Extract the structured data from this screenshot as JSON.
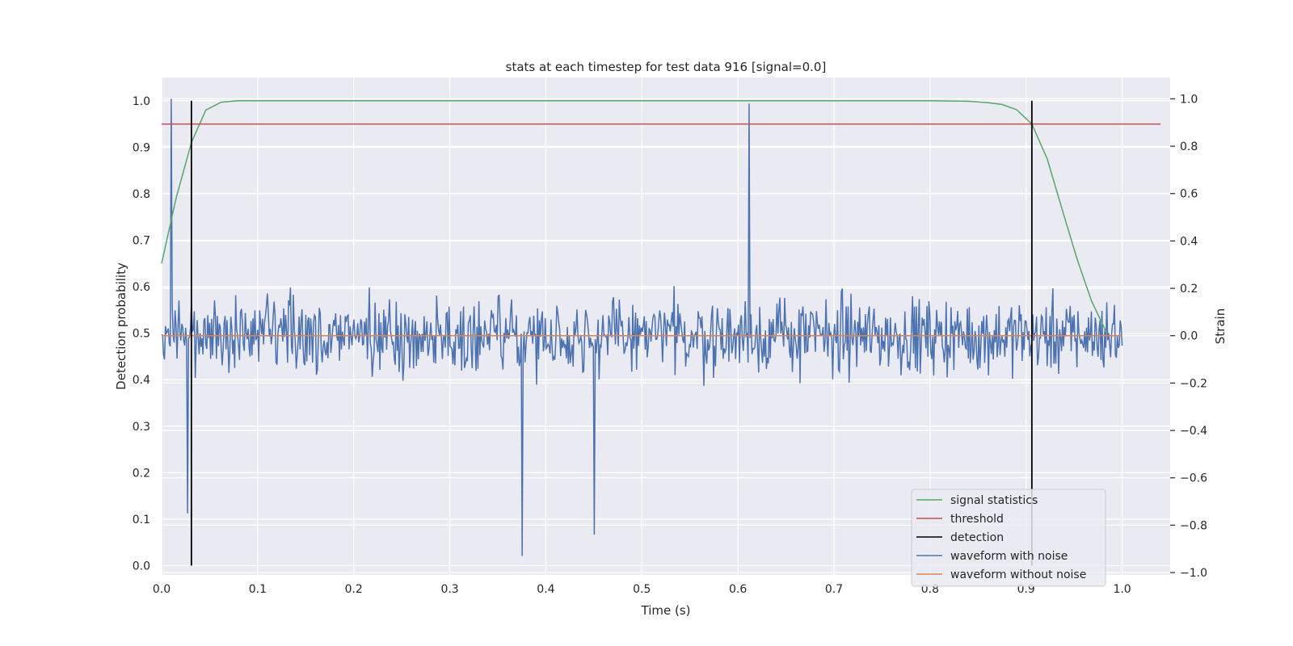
{
  "chart_data": {
    "type": "line",
    "title": "stats at each timestep for test data 916 [signal=0.0]",
    "xlabel": "Time (s)",
    "ylabel_left": "Detection probability",
    "ylabel_right": "Strain",
    "xlim": [
      0.0,
      1.05
    ],
    "ylim_left": [
      -0.02,
      1.05
    ],
    "ylim_right": [
      -1.01,
      1.09
    ],
    "x_ticks": [
      "0.0",
      "0.1",
      "0.2",
      "0.3",
      "0.4",
      "0.5",
      "0.6",
      "0.7",
      "0.8",
      "0.9",
      "1.0"
    ],
    "y_left_ticks": [
      "0.0",
      "0.1",
      "0.2",
      "0.3",
      "0.4",
      "0.5",
      "0.6",
      "0.7",
      "0.8",
      "0.9",
      "1.0"
    ],
    "y_right_ticks": [
      "−1.0",
      "−0.8",
      "−0.6",
      "−0.4",
      "−0.2",
      "0.0",
      "0.2",
      "0.4",
      "0.6",
      "0.8",
      "1.0"
    ],
    "grid": true,
    "legend_position": "bottom-right",
    "series": [
      {
        "name": "signal statistics",
        "axis": "left",
        "color": "#55a868",
        "x": [
          0.0,
          0.015,
          0.031,
          0.046,
          0.062,
          0.08,
          0.1,
          0.2,
          0.3,
          0.4,
          0.5,
          0.6,
          0.7,
          0.8,
          0.84,
          0.86,
          0.875,
          0.89,
          0.906,
          0.922,
          0.937,
          0.953,
          0.968,
          0.984
        ],
        "y": [
          0.65,
          0.79,
          0.91,
          0.98,
          0.997,
          1.0,
          1.0,
          1.0,
          1.0,
          1.0,
          1.0,
          1.0,
          1.0,
          1.0,
          0.999,
          0.996,
          0.992,
          0.981,
          0.95,
          0.875,
          0.77,
          0.66,
          0.57,
          0.5
        ]
      },
      {
        "name": "threshold",
        "axis": "left",
        "color": "#c44e52",
        "x": [
          0.0,
          1.04
        ],
        "y": [
          0.95,
          0.95
        ]
      },
      {
        "name": "detection",
        "axis": "left",
        "color": "#000000",
        "segments": [
          {
            "x": 0.031,
            "y": [
              0.0,
              1.0
            ]
          },
          {
            "x": 0.906,
            "y": [
              0.0,
              1.0
            ]
          }
        ]
      },
      {
        "name": "waveform with noise",
        "axis": "right",
        "color": "#4c72b0",
        "x_range": [
          0.0,
          1.0
        ],
        "n_points": 1000,
        "highlights": [
          {
            "x": 0.01,
            "y": 1.0
          },
          {
            "x": 0.375,
            "y": -0.93
          },
          {
            "x": 0.612,
            "y": 0.98
          },
          {
            "x": 0.45,
            "y": -0.84
          },
          {
            "x": 0.027,
            "y": -0.75
          }
        ],
        "y_envelope": [
          -0.93,
          1.0
        ]
      },
      {
        "name": "waveform without noise",
        "axis": "right",
        "color": "#dd8452",
        "x": [
          0.0,
          1.0
        ],
        "y": [
          0.0,
          0.0
        ]
      }
    ]
  }
}
